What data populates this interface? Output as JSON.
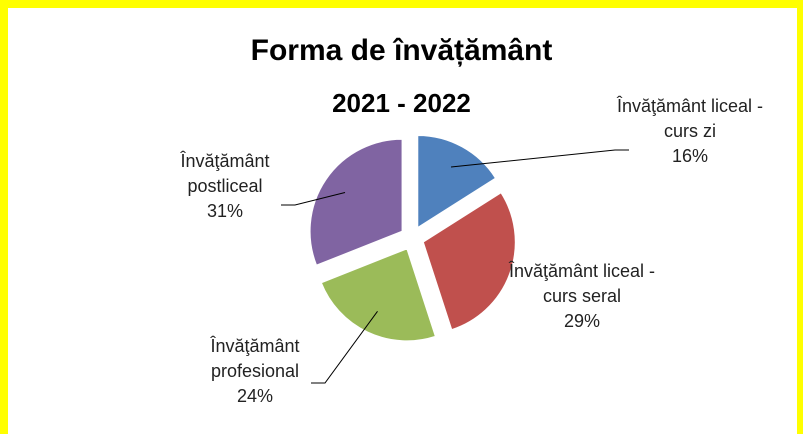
{
  "chart_data": {
    "type": "pie",
    "title": "Forma de învățământ",
    "subtitle": "2021 - 2022",
    "categories": [
      "Învăţământ liceal - curs zi",
      "Învăţământ liceal - curs seral",
      "Învăţământ profesional",
      "Învăţământ postliceal"
    ],
    "values": [
      16,
      29,
      24,
      31
    ],
    "value_labels": [
      "16%",
      "29%",
      "24%",
      "31%"
    ],
    "colors": [
      "#4f81bd",
      "#c0504d",
      "#9bbb59",
      "#8064a2"
    ]
  }
}
